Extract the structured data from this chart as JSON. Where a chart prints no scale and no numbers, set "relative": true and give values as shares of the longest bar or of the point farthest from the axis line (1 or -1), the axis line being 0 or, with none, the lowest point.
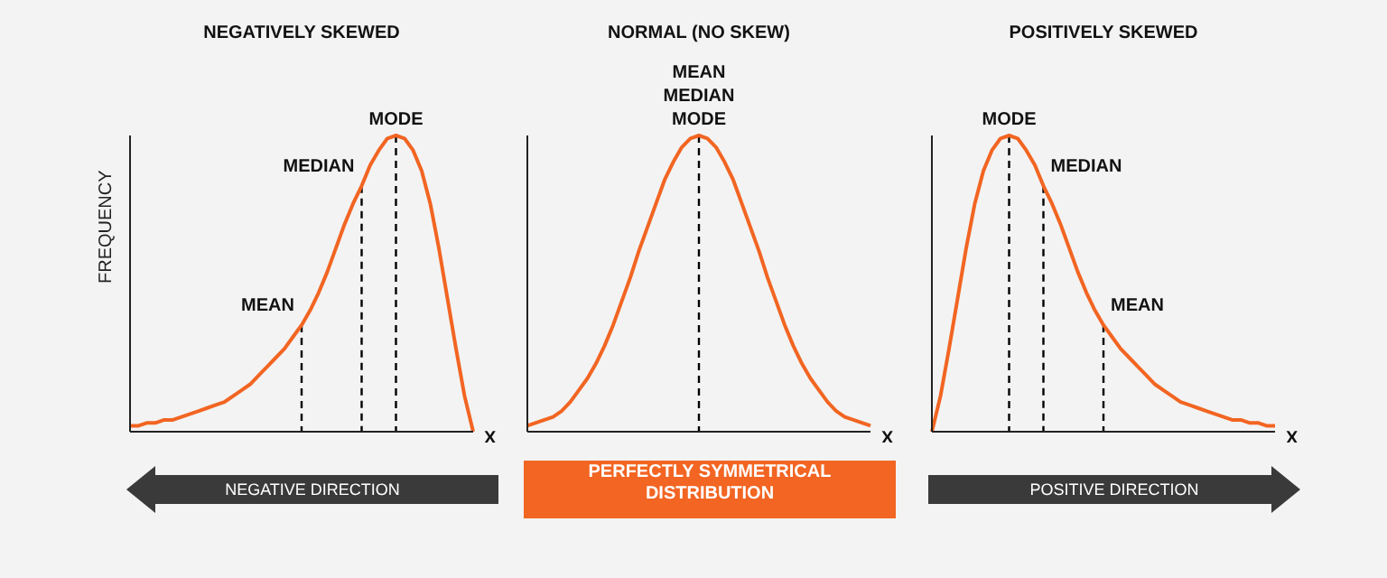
{
  "chart_data": [
    {
      "type": "line",
      "title": "NEGATIVELY SKEWED",
      "ylabel": "FREQUENCY",
      "xlabel": "X",
      "relative": true,
      "marker": "none",
      "line_style": "solid",
      "categories": [
        null,
        null,
        null,
        null,
        null,
        null,
        null,
        null,
        null,
        null,
        null,
        null,
        null,
        null,
        null,
        null,
        null,
        null,
        null,
        null,
        null,
        null,
        null,
        null,
        null,
        null,
        null,
        null,
        null,
        null,
        null,
        null,
        null,
        null,
        null,
        null,
        null,
        null,
        null,
        null,
        null
      ],
      "series": [
        {
          "color": "#f26522",
          "values": [
            0.02,
            0.02,
            0.03,
            0.03,
            0.04,
            0.04,
            0.05,
            0.06,
            0.07,
            0.08,
            0.09,
            0.1,
            0.12,
            0.14,
            0.16,
            0.19,
            0.22,
            0.25,
            0.28,
            0.32,
            0.36,
            0.41,
            0.47,
            0.54,
            0.62,
            0.7,
            0.77,
            0.83,
            0.9,
            0.95,
            0.99,
            1,
            0.99,
            0.95,
            0.88,
            0.77,
            0.62,
            0.45,
            0.28,
            0.12,
            0
          ]
        }
      ],
      "annotations": [
        "MEAN",
        "MEDIAN",
        "MODE",
        "NEGATIVE DIRECTION"
      ]
    },
    {
      "type": "line",
      "title": "NORMAL (NO SKEW)",
      "xlabel": "X",
      "relative": true,
      "marker": "none",
      "line_style": "solid",
      "categories": [
        null,
        null,
        null,
        null,
        null,
        null,
        null,
        null,
        null,
        null,
        null,
        null,
        null,
        null,
        null,
        null,
        null,
        null,
        null,
        null,
        null,
        null,
        null,
        null,
        null,
        null,
        null,
        null,
        null,
        null,
        null,
        null,
        null,
        null,
        null,
        null,
        null,
        null,
        null,
        null,
        null
      ],
      "series": [
        {
          "color": "#f26522",
          "values": [
            0.02,
            0.03,
            0.04,
            0.05,
            0.07,
            0.1,
            0.14,
            0.18,
            0.23,
            0.29,
            0.36,
            0.44,
            0.52,
            0.61,
            0.69,
            0.77,
            0.85,
            0.91,
            0.96,
            0.99,
            1,
            0.99,
            0.96,
            0.91,
            0.85,
            0.77,
            0.69,
            0.61,
            0.52,
            0.44,
            0.36,
            0.29,
            0.23,
            0.18,
            0.14,
            0.1,
            0.07,
            0.05,
            0.04,
            0.03,
            0.02
          ]
        }
      ],
      "annotations": [
        "MODE",
        "MEDIAN",
        "MEAN",
        "PERFECTLY SYMMETRICAL DISTRIBUTION"
      ]
    },
    {
      "type": "line",
      "title": "POSITIVELY SKEWED",
      "xlabel": "X",
      "relative": true,
      "marker": "none",
      "line_style": "solid",
      "categories": [
        null,
        null,
        null,
        null,
        null,
        null,
        null,
        null,
        null,
        null,
        null,
        null,
        null,
        null,
        null,
        null,
        null,
        null,
        null,
        null,
        null,
        null,
        null,
        null,
        null,
        null,
        null,
        null,
        null,
        null,
        null,
        null,
        null,
        null,
        null,
        null,
        null,
        null,
        null,
        null,
        null
      ],
      "series": [
        {
          "color": "#f26522",
          "values": [
            0,
            0.12,
            0.28,
            0.45,
            0.62,
            0.77,
            0.88,
            0.95,
            0.99,
            1,
            0.99,
            0.95,
            0.9,
            0.83,
            0.77,
            0.7,
            0.62,
            0.54,
            0.47,
            0.41,
            0.36,
            0.32,
            0.28,
            0.25,
            0.22,
            0.19,
            0.16,
            0.14,
            0.12,
            0.1,
            0.09,
            0.08,
            0.07,
            0.06,
            0.05,
            0.04,
            0.04,
            0.03,
            0.03,
            0.02,
            0.02
          ]
        }
      ],
      "annotations": [
        "MODE",
        "MEDIAN",
        "MEAN",
        "POSITIVE DIRECTION"
      ]
    }
  ]
}
